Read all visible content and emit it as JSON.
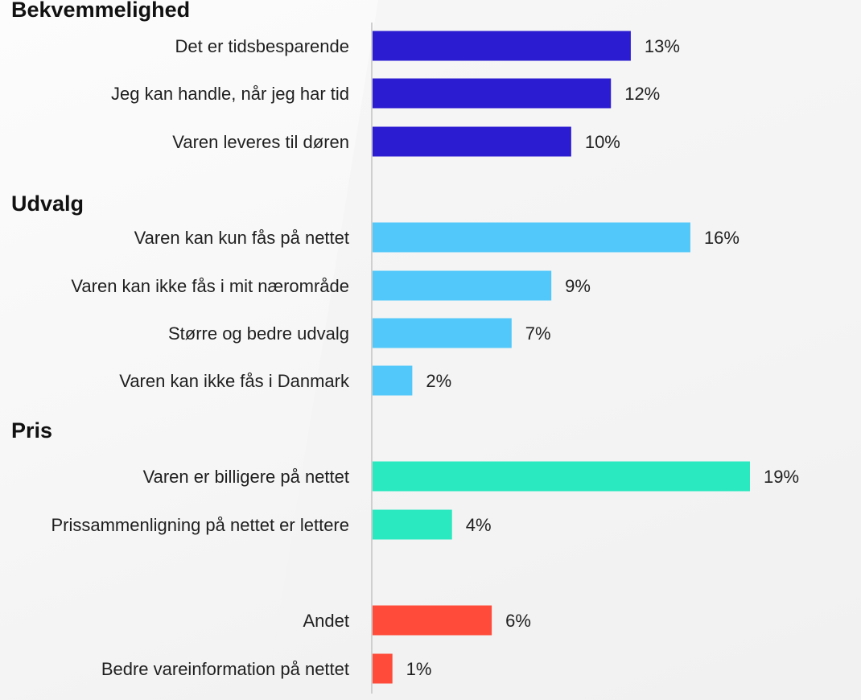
{
  "chart_data": {
    "type": "bar",
    "orientation": "horizontal",
    "xlim": [
      0,
      19
    ],
    "groups": [
      {
        "title": "Bekvemmelighed",
        "color": "#2b1bd1",
        "items": [
          {
            "label": "Det er tidsbesparende",
            "value": 13,
            "value_label": "13%"
          },
          {
            "label": "Jeg kan handle, når jeg har tid",
            "value": 12,
            "value_label": "12%"
          },
          {
            "label": "Varen leveres til døren",
            "value": 10,
            "value_label": "10%"
          }
        ]
      },
      {
        "title": "Udvalg",
        "color": "#52c8fa",
        "items": [
          {
            "label": "Varen kan kun fås på nettet",
            "value": 16,
            "value_label": "16%"
          },
          {
            "label": "Varen kan ikke fås i mit nærområde",
            "value": 9,
            "value_label": "9%"
          },
          {
            "label": "Større og bedre udvalg",
            "value": 7,
            "value_label": "7%"
          },
          {
            "label": "Varen kan ikke fås i Danmark",
            "value": 2,
            "value_label": "2%"
          }
        ]
      },
      {
        "title": "Pris",
        "color": "#2ae8c0",
        "items": [
          {
            "label": "Varen er billigere på nettet",
            "value": 19,
            "value_label": "19%"
          },
          {
            "label": "Prissammenligning på nettet er lettere",
            "value": 4,
            "value_label": "4%"
          }
        ]
      },
      {
        "title": "",
        "color": "#ff4b3a",
        "items": [
          {
            "label": "Andet",
            "value": 6,
            "value_label": "6%"
          },
          {
            "label": "Bedre vareinformation på nettet",
            "value": 1,
            "value_label": "1%"
          }
        ]
      }
    ]
  }
}
